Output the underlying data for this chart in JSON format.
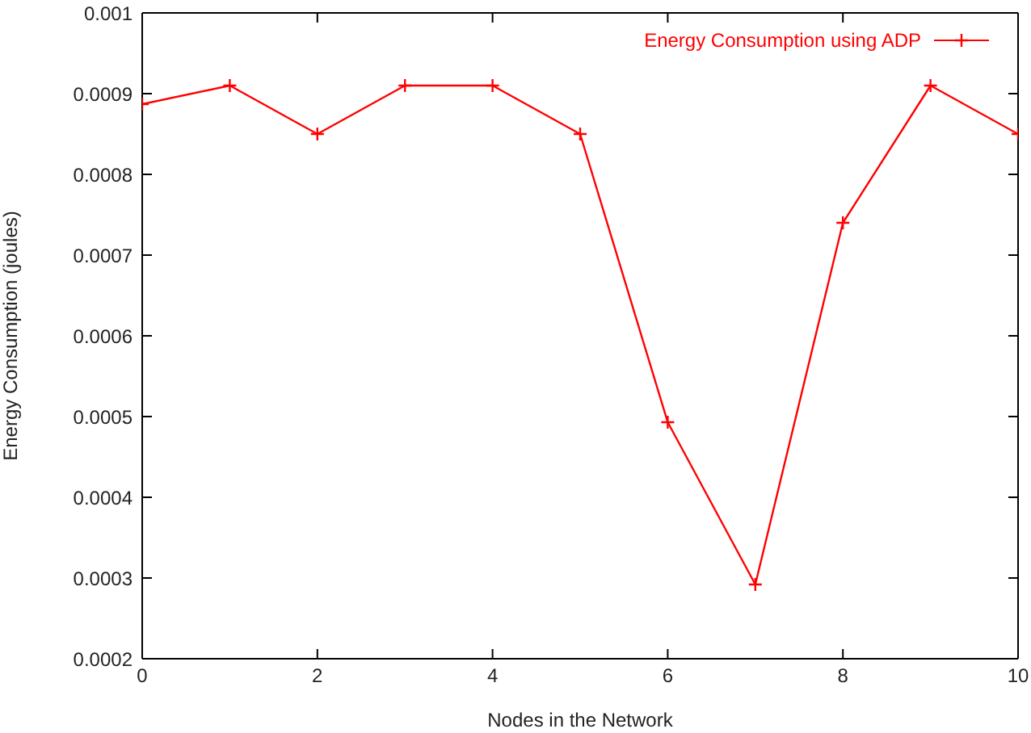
{
  "chart_data": {
    "type": "line",
    "xlabel": "Nodes in the Network",
    "ylabel": "Energy Consumption (joules)",
    "x": [
      0,
      1,
      2,
      3,
      4,
      5,
      6,
      7,
      8,
      9,
      10
    ],
    "series": [
      {
        "name": "Energy Consumption using ADP",
        "color": "#ff0000",
        "values": [
          0.000887,
          0.00091,
          0.00085,
          0.00091,
          0.00091,
          0.00085,
          0.000493,
          0.000292,
          0.00074,
          0.00091,
          0.00085
        ]
      }
    ],
    "xlim": [
      0,
      10
    ],
    "xticks": [
      0,
      2,
      4,
      6,
      8,
      10
    ],
    "ylim": [
      0.0002,
      0.001
    ],
    "yticks": [
      0.0002,
      0.0003,
      0.0004,
      0.0005,
      0.0006,
      0.0007,
      0.0008,
      0.0009,
      0.001
    ],
    "grid": false,
    "legend": "top right",
    "marker": "cross",
    "line_style": "solid"
  }
}
